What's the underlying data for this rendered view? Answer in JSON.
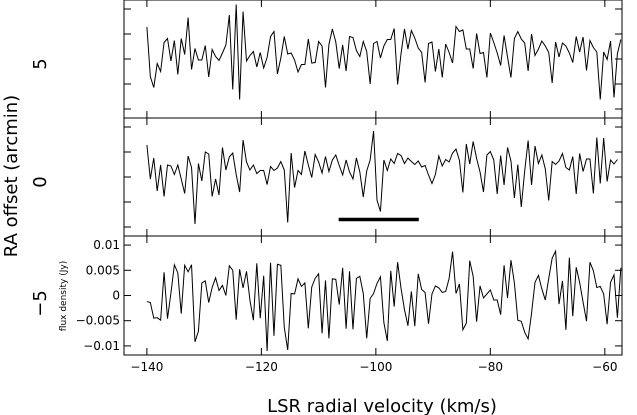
{
  "chart_data": {
    "type": "line",
    "xlabel": "LSR radial velocity (km/s)",
    "outer_ylabel": "RA offset (arcmin)",
    "ylabel": "flux density (Jy)",
    "xlim": [
      -144,
      -57
    ],
    "ylim": [
      -0.0118,
      0.0118
    ],
    "x_ticks": [
      -140,
      -120,
      -100,
      -80,
      -60
    ],
    "x_tick_labels": [
      "−140",
      "−120",
      "−100",
      "−80",
      "−60"
    ],
    "y_ticks": [
      0.01,
      0.005,
      0,
      -0.005,
      -0.01
    ],
    "y_tick_labels": [
      "0.01",
      "0.005",
      "0",
      "−0.005",
      "−0.01"
    ],
    "offset_labels": [
      "5",
      "0",
      "−5"
    ],
    "marker_bar": {
      "x": [
        -106.5,
        -92.5
      ],
      "y": -0.0085
    },
    "x_start": -140,
    "x_step": 0.6,
    "series": [
      {
        "offset": "5",
        "values": [
          0.0064,
          -0.0035,
          -0.0057,
          -0.0009,
          -0.0025,
          0.0033,
          0.0041,
          -0.0004,
          0.0037,
          -0.0031,
          0.0041,
          0.0009,
          0.0083,
          -0.0021,
          0.0021,
          -0.0002,
          -0.0002,
          0.0027,
          -0.0036,
          0.0019,
          0.0005,
          -0.0003,
          0.0012,
          0.0028,
          0.0088,
          -0.0061,
          0.0109,
          -0.0081,
          0.0095,
          -0.0004,
          0.0007,
          0.0015,
          -0.0016,
          0.0013,
          -0.0018,
          0.0003,
          0.0045,
          0.0055,
          -0.003,
          0.0002,
          0.0045,
          0.001,
          0.0012,
          -0.0002,
          -0.0026,
          -0.0011,
          -0.0011,
          0.004,
          -0.0008,
          -0.0007,
          0.0035,
          0.0026,
          -0.0057,
          0.0029,
          0.006,
          0.0034,
          -0.0019,
          0.0028,
          -0.0024,
          0.0045,
          0.0043,
          0.0017,
          0.0005,
          0.0035,
          0.0015,
          -0.005,
          0.0031,
          0.0035,
          0.0002,
          0.0026,
          0.0039,
          0.0039,
          0.0061,
          -0.0051,
          0.0011,
          0.006,
          0.002,
          0.0057,
          0.0042,
          0.0022,
          0.0013,
          -0.0047,
          0.0031,
          0.0034,
          -0.0025,
          0.002,
          -0.0037,
          0.003,
          0.0013,
          -0.0008,
          0.0065,
          0.0055,
          0.0058,
          0.002,
          0.002,
          -0.0019,
          0.0051,
          0.0011,
          0.0013,
          -0.0037,
          0.0052,
          0.0033,
          0.0012,
          -0.0013,
          0.0047,
          0.0004,
          -0.0037,
          0.0041,
          0.0055,
          0.004,
          0.0032,
          -0.0024,
          0.005,
          0.0007,
          0.002,
          0.0036,
          0.0026,
          0.0013,
          -0.0048,
          0.0034,
          0.0004,
          0.0032,
          0.0026,
          0.0012,
          -0.0007,
          0.0045,
          0.0014,
          0.0044,
          -0.0023,
          0.0037,
          0.0023,
          0.0014,
          -0.0081,
          0.0014,
          -0.0001,
          0.0036,
          -0.0077,
          0.0011,
          0.0039
        ]
      },
      {
        "offset": "0",
        "values": [
          0.0064,
          -0.0004,
          0.0038,
          -0.0028,
          0.0024,
          -0.0039,
          0.0024,
          0.0022,
          0.0005,
          0.0024,
          -0.0004,
          -0.0033,
          0.0042,
          0.0019,
          -0.0094,
          0.0027,
          -0.0008,
          0.005,
          0.0046,
          -0.0039,
          -0.0004,
          -0.0036,
          0.0059,
          0.0014,
          0.004,
          0.0048,
          0.0005,
          -0.003,
          0.0074,
          0.003,
          0.0014,
          0.0024,
          0.0007,
          0.0013,
          0.0013,
          -0.0015,
          0.0021,
          0.0013,
          0.0018,
          0.0031,
          0.0014,
          -0.0091,
          0.0048,
          -0.0021,
          0.0013,
          0.0005,
          0.0052,
          0.0024,
          -0.0001,
          0.0045,
          0.003,
          0.0008,
          0.0041,
          0.0011,
          0.0034,
          0.0044,
          0.0023,
          0.0004,
          0.0034,
          0.001,
          -0.0004,
          0.0038,
          0.001,
          -0.004,
          0.0012,
          0.0034,
          0.0092,
          -0.0046,
          -0.0069,
          0.0034,
          0.0013,
          0.0036,
          0.0027,
          0.0047,
          0.0043,
          0.0027,
          0.0038,
          0.0031,
          0.0025,
          0.0032,
          0.002,
          0.0023,
          0.0004,
          -0.0013,
          0.0005,
          0.0042,
          0.0022,
          0.0035,
          0.003,
          0.0048,
          0.0056,
          0.0033,
          -0.0031,
          0.0066,
          0.0026,
          0.0071,
          0.0037,
          0.001,
          -0.003,
          0.0044,
          0.0051,
          0.0034,
          -0.0034,
          0.0043,
          -0.0016,
          0.0059,
          0.0032,
          -0.0042,
          0.0025,
          -0.006,
          0.0012,
          0.0073,
          -0.0016,
          0.0062,
          0.0027,
          0.0044,
          0.0016,
          -0.0047,
          0.0031,
          0.0025,
          0.0032,
          0.0047,
          0.0019,
          0.0014,
          0.0041,
          -0.0034,
          0.0047,
          0.0011,
          0.0036,
          0.0036,
          -0.0033,
          0.0079,
          -0.0013,
          0.0078,
          -0.0009,
          0.0034,
          0.0026,
          0.0035
        ]
      },
      {
        "offset": "−5",
        "values": [
          -0.0012,
          -0.0014,
          -0.0045,
          -0.0044,
          -0.0049,
          0.0046,
          -0.0046,
          0.0005,
          0.0061,
          0.0045,
          -0.0036,
          0.006,
          0.0047,
          0.0061,
          -0.0092,
          -0.0071,
          0.0025,
          0.0029,
          -0.0014,
          0.0016,
          0.0035,
          0.001,
          0.002,
          0.0,
          0.0059,
          0.005,
          -0.0048,
          0.0052,
          0.0015,
          0.0048,
          -0.0009,
          -0.0049,
          0.0064,
          -0.0045,
          0.0039,
          -0.011,
          0.0065,
          -0.008,
          0.0062,
          0.006,
          -0.0063,
          -0.0108,
          0.0004,
          0.0003,
          0.0033,
          0.0018,
          0.0025,
          -0.0065,
          0.0017,
          0.0034,
          0.0043,
          -0.0075,
          0.003,
          -0.0085,
          0.0033,
          0.0032,
          -0.0018,
          0.0055,
          -0.0066,
          0.0048,
          -0.0067,
          0.0034,
          0.0038,
          0.0004,
          -0.0085,
          -0.0006,
          0.0004,
          0.0024,
          0.0037,
          -0.0054,
          -0.009,
          0.0049,
          -0.0022,
          0.0066,
          0.0014,
          -0.0028,
          -0.006,
          0.0008,
          -0.0061,
          0.0043,
          0.0012,
          0.0006,
          -0.0056,
          0.0003,
          0.0019,
          0.0015,
          0.0006,
          0.0008,
          0.0034,
          0.0087,
          0.0004,
          0.0023,
          -0.0068,
          -0.0055,
          0.0069,
          0.0038,
          -0.0052,
          0.0019,
          -0.0005,
          0.0003,
          0.0011,
          -0.0009,
          -0.0009,
          -0.0038,
          0.006,
          -0.0005,
          0.007,
          0.0025,
          -0.0049,
          -0.0051,
          -0.0073,
          -0.0086,
          -0.0035,
          0.0026,
          0.004,
          0.0013,
          -0.0009,
          0.0034,
          0.0074,
          0.0088,
          -0.0017,
          0.0029,
          -0.0068,
          0.0075,
          -0.0041,
          0.0056,
          0.0026,
          -0.0013,
          -0.0051,
          0.0066,
          0.0049,
          0.0016,
          0.0018,
          0.0003,
          -0.0057,
          0.0026,
          0.0041,
          -0.0044,
          0.0055
        ]
      }
    ]
  }
}
